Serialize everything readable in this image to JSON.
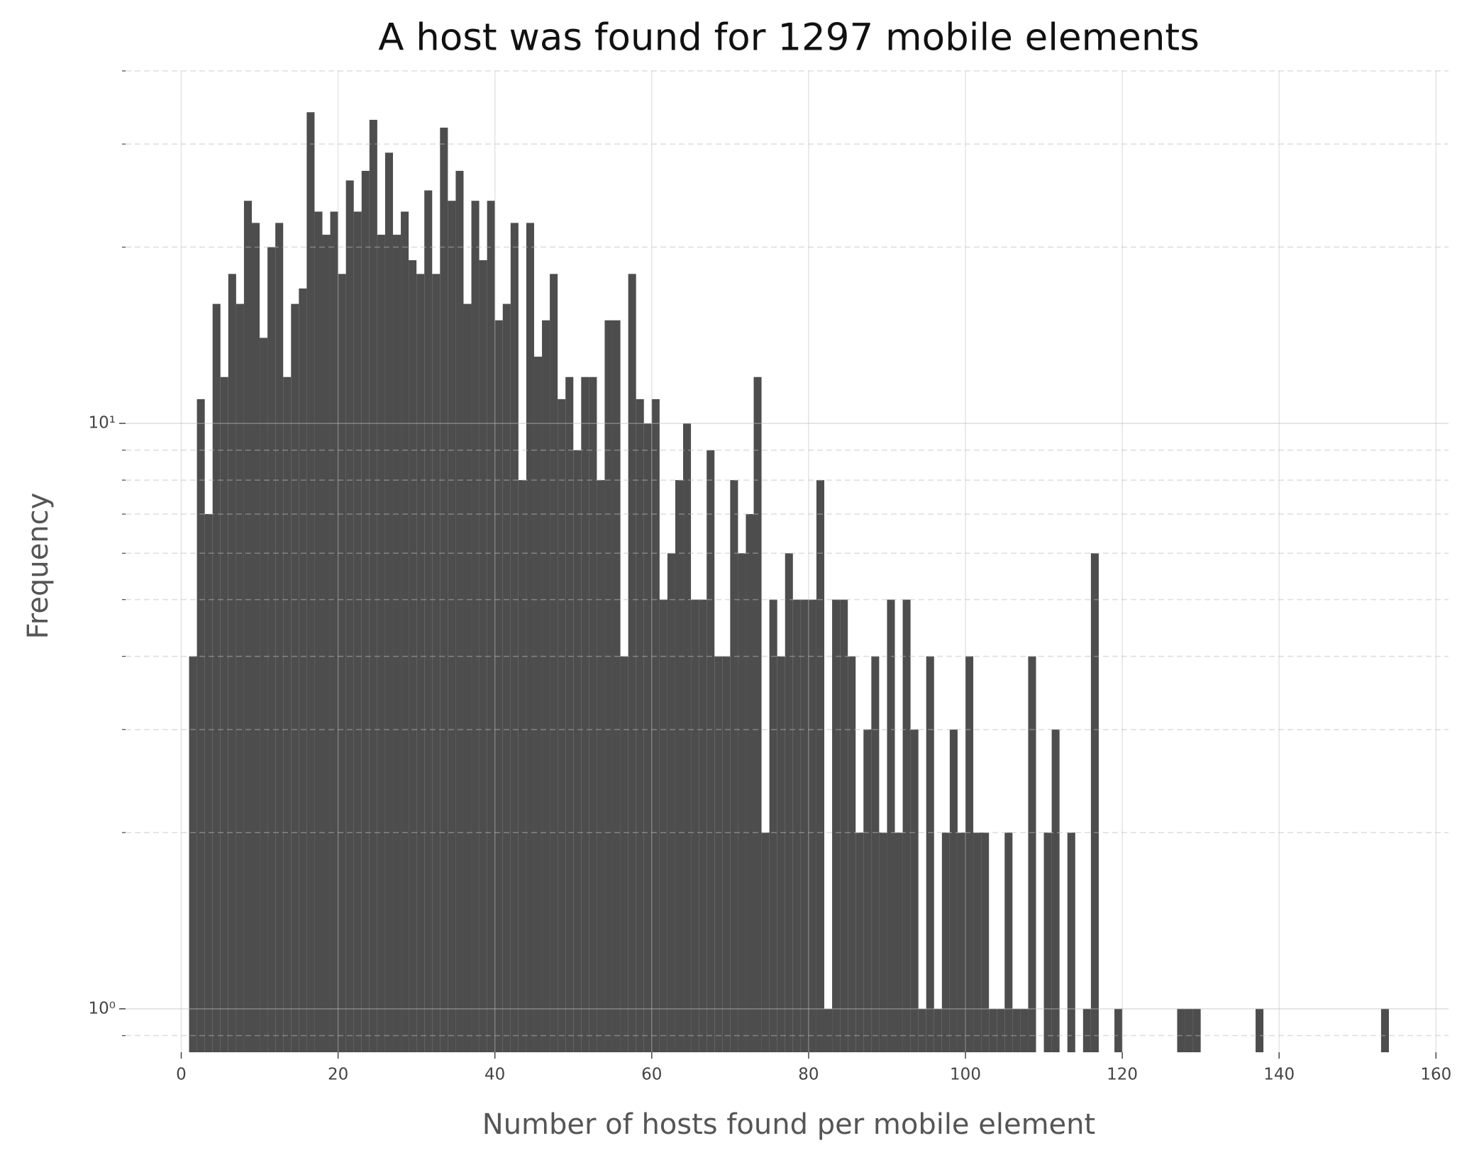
{
  "chart_data": {
    "type": "histogram",
    "title": "A host was found for 1297 mobile elements",
    "xlabel": "Number of hosts found per mobile element",
    "ylabel": "Frequency",
    "color": "#4d4d4d",
    "log_y": true,
    "grid": true,
    "bins": [
      1,
      2,
      3,
      4,
      5,
      6,
      7,
      8,
      9,
      10,
      11,
      12,
      13,
      14,
      15,
      16,
      17,
      18,
      19,
      20,
      21,
      22,
      23,
      24,
      25,
      26,
      27,
      28,
      29,
      30,
      31,
      32,
      33,
      34,
      35,
      36,
      37,
      38,
      39,
      40,
      41,
      42,
      43,
      44,
      45,
      46,
      47,
      48,
      49,
      50,
      51,
      52,
      53,
      54,
      55,
      56,
      57,
      58,
      59,
      60,
      61,
      62,
      63,
      64,
      65,
      66,
      67,
      68,
      69,
      70,
      71,
      72,
      73,
      74,
      75,
      76,
      77,
      78,
      79,
      80,
      81,
      82,
      83,
      84,
      85,
      86,
      87,
      88,
      89,
      90,
      91,
      92,
      93,
      94,
      95,
      96,
      97,
      98,
      99,
      100,
      101,
      102,
      103,
      104,
      105,
      106,
      107,
      108,
      109,
      110,
      111,
      112,
      113,
      114,
      115,
      116,
      117,
      118,
      119,
      120,
      121,
      122,
      123,
      124,
      125,
      126,
      127,
      128,
      129,
      130,
      131,
      132,
      133,
      134,
      135,
      136,
      137,
      138,
      139,
      140,
      141,
      142,
      143,
      144,
      145,
      146,
      147,
      148,
      149,
      150,
      151,
      152,
      153,
      154
    ],
    "counts": [
      4,
      11,
      7,
      16,
      12,
      18,
      16,
      24,
      22,
      14,
      20,
      22,
      12,
      16,
      17,
      34,
      23,
      21,
      23,
      18,
      26,
      23,
      27,
      33,
      21,
      29,
      21,
      23,
      19,
      18,
      25,
      18,
      32,
      24,
      27,
      16,
      24,
      19,
      24,
      15,
      16,
      22,
      8,
      22,
      13,
      15,
      18,
      11,
      12,
      9,
      12,
      12,
      8,
      15,
      15,
      4,
      18,
      11,
      10,
      11,
      5,
      6,
      8,
      10,
      5,
      5,
      9,
      4,
      4,
      8,
      6,
      7,
      12,
      2,
      5,
      4,
      6,
      5,
      5,
      5,
      8,
      1,
      5,
      5,
      4,
      2,
      3,
      4,
      2,
      5,
      2,
      5,
      3,
      1,
      4,
      1,
      2,
      3,
      2,
      4,
      2,
      2,
      1,
      1,
      2,
      1,
      1,
      4,
      0,
      2,
      3,
      0,
      2,
      0,
      1,
      6,
      0,
      0,
      1,
      0,
      0,
      0,
      0,
      0,
      0,
      0,
      1,
      1,
      1,
      0,
      0,
      0,
      0,
      0,
      0,
      0,
      1,
      0,
      0,
      0,
      0,
      0,
      0,
      0,
      0,
      0,
      0,
      0,
      0,
      0,
      0,
      0,
      1
    ],
    "xlim": [
      -7.1,
      161.6
    ],
    "xticks": [
      0,
      20,
      40,
      60,
      80,
      100,
      120,
      140,
      160
    ],
    "ylim": [
      0.843,
      40
    ],
    "yticks": [
      {
        "value": 1,
        "label": "10⁰"
      },
      {
        "value": 10,
        "label": "10¹"
      }
    ],
    "yminorticks": [
      0.9,
      2,
      3,
      4,
      5,
      6,
      7,
      8,
      9,
      20,
      30,
      40
    ]
  }
}
